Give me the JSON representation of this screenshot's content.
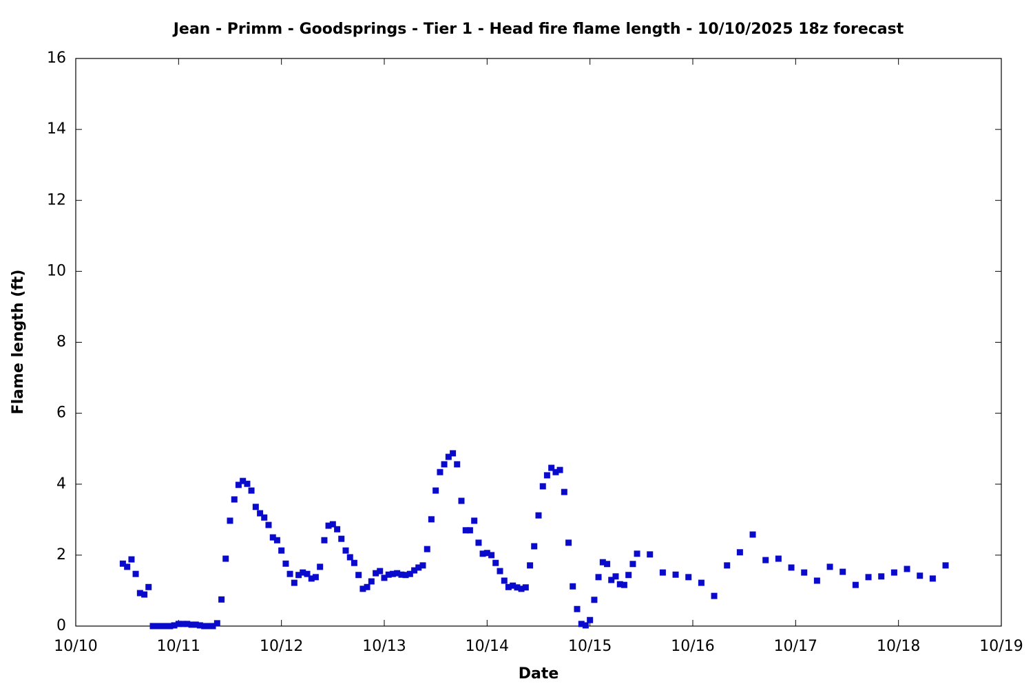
{
  "chart_data": {
    "type": "scatter",
    "title": "Jean - Primm - Goodsprings - Tier 1 - Head fire flame length - 10/10/2025 18z forecast",
    "x_label": "Date",
    "y_label": "Flame length (ft)",
    "xlim": [
      0,
      9
    ],
    "xticks": [
      {
        "value": 0,
        "label": "10/10"
      },
      {
        "value": 1,
        "label": "10/11"
      },
      {
        "value": 2,
        "label": "10/12"
      },
      {
        "value": 3,
        "label": "10/13"
      },
      {
        "value": 4,
        "label": "10/14"
      },
      {
        "value": 5,
        "label": "10/15"
      },
      {
        "value": 6,
        "label": "10/16"
      },
      {
        "value": 7,
        "label": "10/17"
      },
      {
        "value": 8,
        "label": "10/18"
      },
      {
        "value": 9,
        "label": "10/19"
      }
    ],
    "ylim": [
      0,
      16
    ],
    "yticks": [
      0,
      2,
      4,
      6,
      8,
      10,
      12,
      14,
      16
    ],
    "grid": false,
    "series": [
      {
        "color": "#0a0acc",
        "x": [
          0.458,
          0.5,
          0.542,
          0.583,
          0.625,
          0.667,
          0.708,
          0.75,
          0.792,
          0.833,
          0.875,
          0.917,
          0.958,
          1,
          1.042,
          1.083,
          1.125,
          1.167,
          1.208,
          1.25,
          1.292,
          1.333,
          1.375,
          1.417,
          1.458,
          1.5,
          1.542,
          1.583,
          1.625,
          1.667,
          1.708,
          1.75,
          1.792,
          1.833,
          1.875,
          1.917,
          1.958,
          2,
          2.042,
          2.083,
          2.125,
          2.167,
          2.208,
          2.25,
          2.292,
          2.333,
          2.375,
          2.417,
          2.458,
          2.5,
          2.542,
          2.583,
          2.625,
          2.667,
          2.708,
          2.75,
          2.792,
          2.833,
          2.875,
          2.917,
          2.958,
          3,
          3.042,
          3.083,
          3.125,
          3.167,
          3.208,
          3.25,
          3.292,
          3.333,
          3.375,
          3.417,
          3.458,
          3.5,
          3.542,
          3.583,
          3.625,
          3.667,
          3.708,
          3.75,
          3.792,
          3.833,
          3.875,
          3.917,
          3.958,
          4,
          4.042,
          4.083,
          4.125,
          4.167,
          4.208,
          4.25,
          4.292,
          4.333,
          4.375,
          4.417,
          4.458,
          4.5,
          4.542,
          4.583,
          4.625,
          4.667,
          4.708,
          4.75,
          4.792,
          4.833,
          4.875,
          4.917,
          4.958,
          5,
          5.042,
          5.083,
          5.125,
          5.167,
          5.208,
          5.25,
          5.292,
          5.333,
          5.375,
          5.417,
          5.458,
          5.583,
          5.708,
          5.833,
          5.958,
          6.083,
          6.208,
          6.333,
          6.458,
          6.583,
          6.708,
          6.833,
          6.958,
          7.083,
          7.208,
          7.333,
          7.458,
          7.583,
          7.708,
          7.833,
          7.958,
          8.083,
          8.208,
          8.333,
          8.458
        ],
        "values": [
          1.76,
          1.67,
          1.88,
          1.47,
          0.93,
          0.89,
          1.1,
          0,
          0,
          0,
          0,
          0,
          0.02,
          0.06,
          0.06,
          0.06,
          0.04,
          0.04,
          0.02,
          0,
          0,
          0,
          0.08,
          0.75,
          1.9,
          2.97,
          3.57,
          3.98,
          4.09,
          4.01,
          3.82,
          3.36,
          3.18,
          3.06,
          2.85,
          2.5,
          2.42,
          2.13,
          1.76,
          1.47,
          1.22,
          1.44,
          1.51,
          1.47,
          1.34,
          1.38,
          1.67,
          2.42,
          2.83,
          2.87,
          2.73,
          2.46,
          2.13,
          1.94,
          1.78,
          1.44,
          1.05,
          1.1,
          1.26,
          1.49,
          1.55,
          1.36,
          1.45,
          1.47,
          1.49,
          1.45,
          1.44,
          1.47,
          1.57,
          1.65,
          1.71,
          2.17,
          3.01,
          3.82,
          4.34,
          4.56,
          4.77,
          4.87,
          4.56,
          3.53,
          2.7,
          2.7,
          2.97,
          2.35,
          2.04,
          2.06,
          2,
          1.78,
          1.55,
          1.28,
          1.1,
          1.14,
          1.09,
          1.05,
          1.09,
          1.71,
          2.25,
          3.12,
          3.94,
          4.25,
          4.46,
          4.34,
          4.4,
          3.78,
          2.35,
          1.12,
          0.48,
          0.06,
          0.02,
          0.17,
          0.74,
          1.38,
          1.8,
          1.75,
          1.3,
          1.4,
          1.18,
          1.16,
          1.44,
          1.75,
          2.04,
          2.02,
          1.51,
          1.45,
          1.38,
          1.22,
          0.85,
          1.71,
          2.08,
          2.58,
          1.86,
          1.9,
          1.65,
          1.51,
          1.28,
          1.67,
          1.53,
          1.16,
          1.38,
          1.4,
          1.51,
          1.61,
          1.42,
          1.34,
          1.71
        ]
      }
    ]
  }
}
